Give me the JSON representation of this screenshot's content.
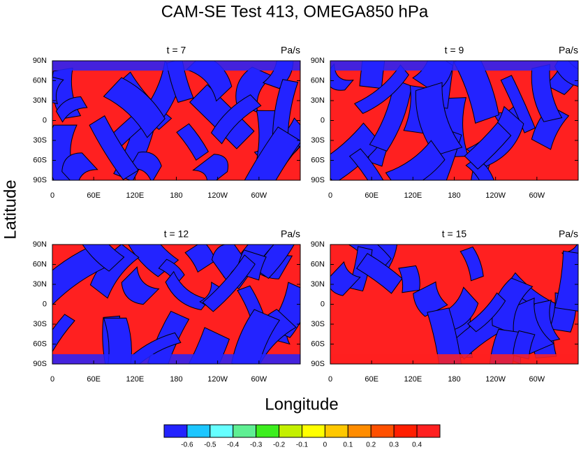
{
  "chart_data": {
    "type": "contour",
    "title": "CAM-SE Test 413, OMEGA850 hPa",
    "x_label": "Longitude",
    "y_label": "Latitude",
    "panels": [
      {
        "title": "t = 7",
        "units": "Pa/s"
      },
      {
        "title": "t = 9",
        "units": "Pa/s"
      },
      {
        "title": "t = 12",
        "units": "Pa/s"
      },
      {
        "title": "t = 15",
        "units": "Pa/s"
      }
    ],
    "xlim": [
      0,
      360
    ],
    "xticks": [
      0,
      {
        "value": 60,
        "label": "60E"
      },
      {
        "value": 120,
        "label": "120E"
      },
      180,
      {
        "value": 240,
        "label": "120W"
      },
      {
        "value": 300,
        "label": "60W"
      }
    ],
    "ylim": [
      -90,
      90
    ],
    "yticks": [
      {
        "value": 90,
        "label": "90N"
      },
      {
        "value": 60,
        "label": "60N"
      },
      {
        "value": 30,
        "label": "30N"
      },
      0,
      {
        "value": -30,
        "label": "30S"
      },
      {
        "value": -60,
        "label": "60S"
      },
      {
        "value": -90,
        "label": "90S"
      }
    ],
    "colorbar": {
      "levels": [
        -0.6,
        -0.5,
        -0.4,
        -0.3,
        -0.2,
        -0.1,
        0,
        0.1,
        0.2,
        0.3,
        0.4
      ],
      "colors": [
        "#2323ff",
        "#1cc6ff",
        "#66ffff",
        "#5fef93",
        "#3dee1e",
        "#c4f000",
        "#ffff00",
        "#ffc800",
        "#ff8c00",
        "#ff5000",
        "#ff1e00",
        "#ff2020"
      ]
    }
  }
}
